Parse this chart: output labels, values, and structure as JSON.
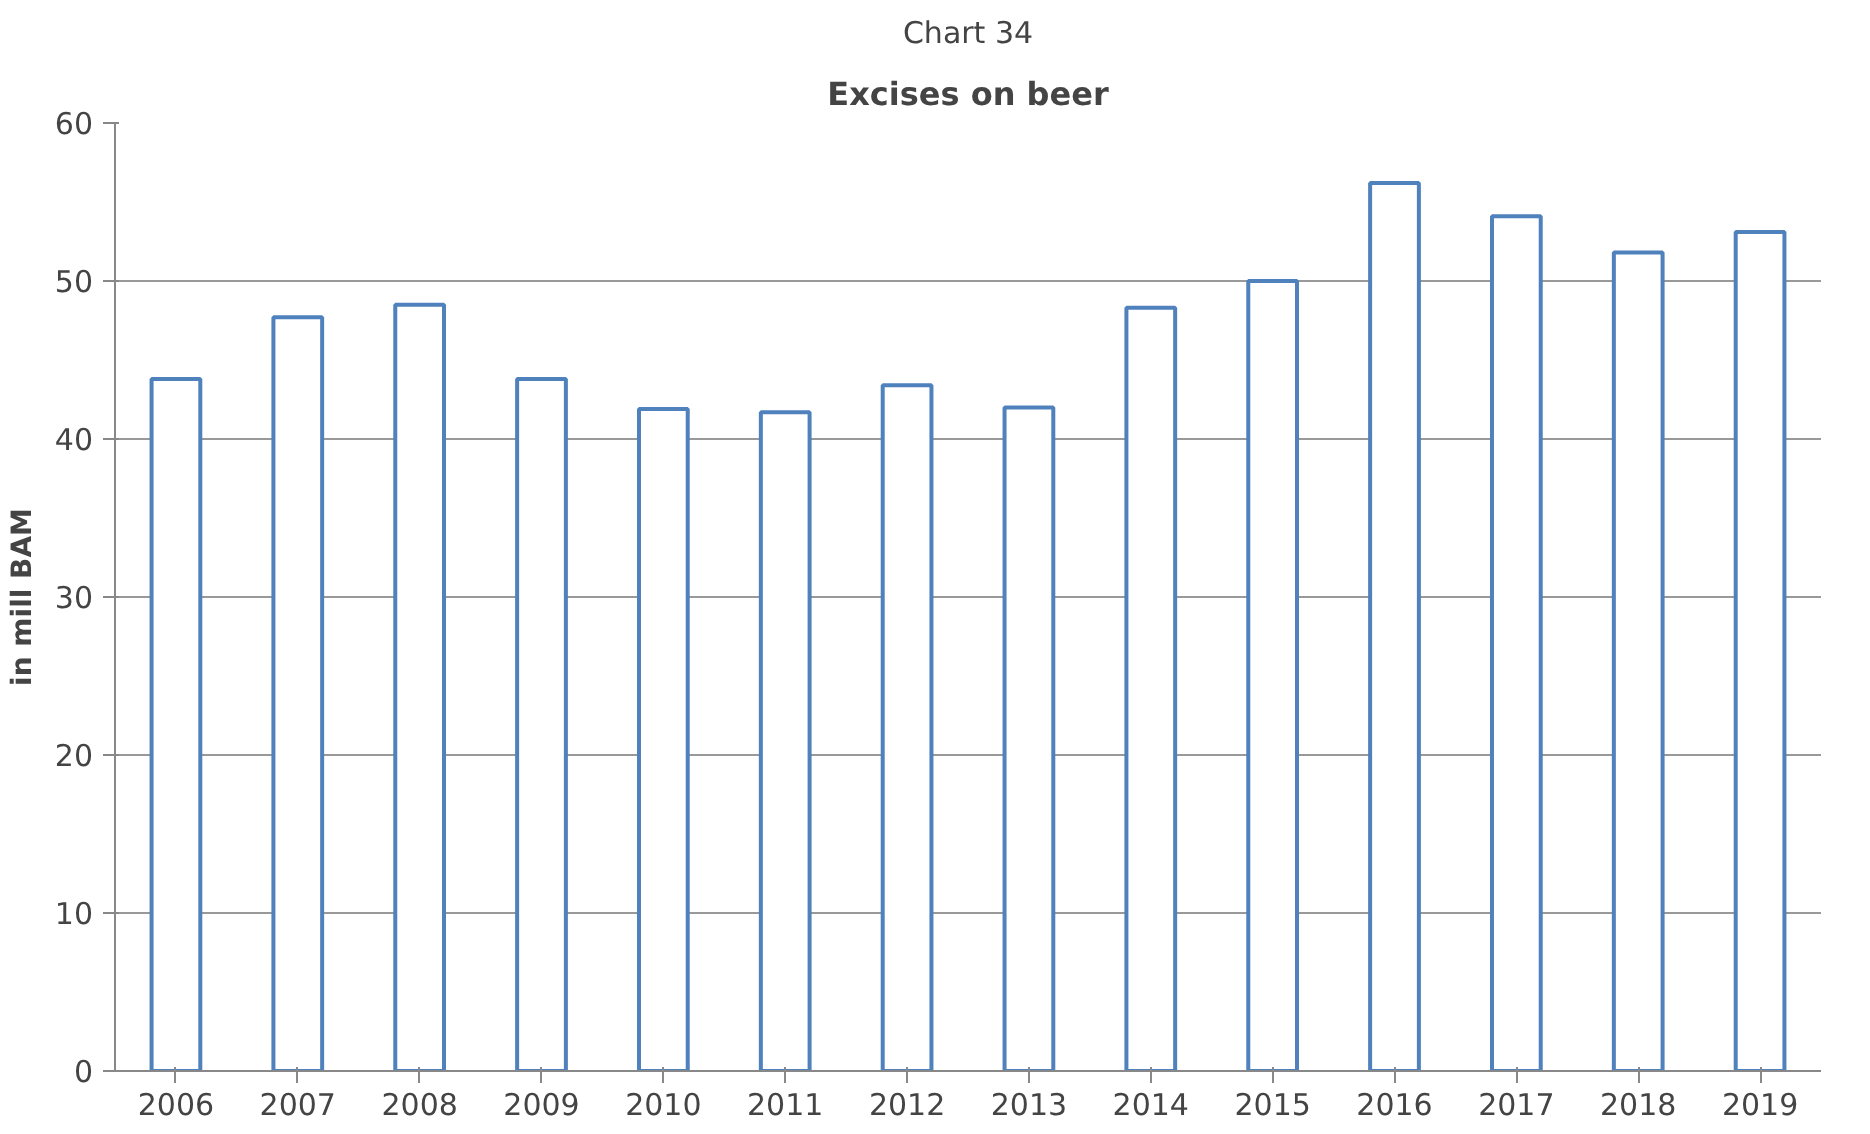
{
  "chart_data": {
    "type": "bar",
    "title": "Excises on beer",
    "ylabel": "in mill BAM",
    "annotations": [
      "Chart 34"
    ],
    "categories": [
      "2006",
      "2007",
      "2008",
      "2009",
      "2010",
      "2011",
      "2012",
      "2013",
      "2014",
      "2015",
      "2016",
      "2017",
      "2018",
      "2019"
    ],
    "values": [
      43.8,
      47.7,
      48.5,
      43.8,
      41.9,
      41.7,
      43.4,
      42.0,
      48.3,
      50.0,
      56.2,
      54.1,
      51.8,
      53.1
    ],
    "color": "#4f81bd",
    "ylim": [
      0,
      60
    ],
    "yticks": [
      0,
      10,
      20,
      30,
      40,
      50,
      60
    ],
    "grid": "y"
  }
}
